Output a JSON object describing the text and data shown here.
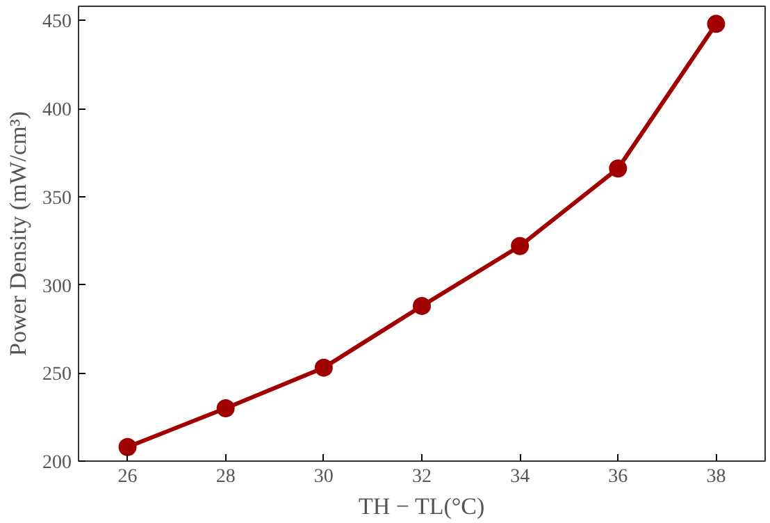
{
  "chart_data": {
    "type": "line",
    "xlabel": "TH − TL(°C)",
    "ylabel": "Power Density (mW/cm³)",
    "x": [
      26,
      28,
      30,
      32,
      34,
      36,
      38
    ],
    "series": [
      {
        "color": "#a00000",
        "values": [
          208,
          230,
          253,
          288,
          322,
          366,
          448
        ]
      }
    ],
    "xlim": [
      25,
      39
    ],
    "ylim": [
      200,
      458
    ],
    "xticks": [
      26,
      28,
      30,
      32,
      34,
      36,
      38
    ],
    "yticks": [
      200,
      250,
      300,
      350,
      400,
      450
    ],
    "marker": "circle",
    "line_style": "solid"
  }
}
